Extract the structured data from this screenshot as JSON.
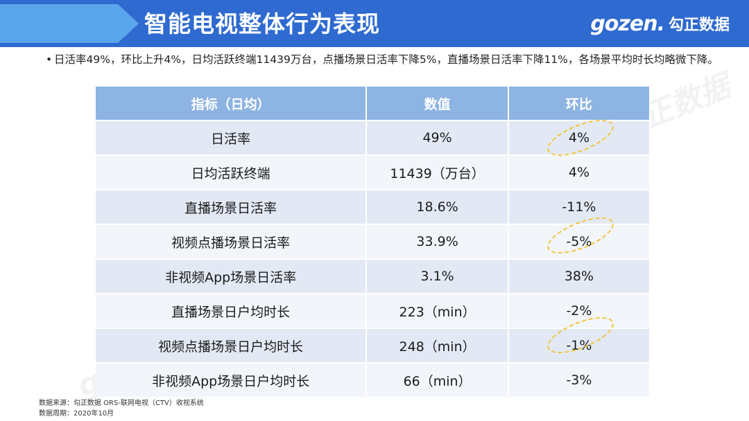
{
  "header": {
    "title": "智能电视整体行为表现",
    "logo_mark": "gozen.",
    "logo_cn": "勾正数据"
  },
  "bullet": {
    "dot": "•",
    "text": "日活率49%，环比上升4%，日均活跃终端11439万台，点播场景日活率下降5%，直播场景日活率下降11%，各场景平均时长均略微下降。"
  },
  "table": {
    "headers": [
      "指标（日均）",
      "数值",
      "环比"
    ],
    "rows": [
      [
        "日活率",
        "49%",
        "4%"
      ],
      [
        "日均活跃终端",
        "11439（万台）",
        "4%"
      ],
      [
        "直播场景日活率",
        "18.6%",
        "-11%"
      ],
      [
        "视频点播场景日活率",
        "33.9%",
        "-5%"
      ],
      [
        "非视频App场景日活率",
        "3.1%",
        "38%"
      ],
      [
        "直播场景日户均时长",
        "223（min）",
        "-2%"
      ],
      [
        "视频点播场景日户均时长",
        "248（min）",
        "-1%"
      ],
      [
        "非视频App场景日户均时长",
        "66（min）",
        "-3%"
      ]
    ]
  },
  "watermark": "gozen.勾正数据",
  "footer": {
    "source": "数据来源：勾正数据 ORS-联网电视（CTV）收视系统",
    "period": "数据周期：2020年10月"
  },
  "colors": {
    "header_dark": "#2e6ad0",
    "header_light": "#5aa6ec",
    "table_header": "#8db4e2",
    "highlight": "#f2c233"
  }
}
